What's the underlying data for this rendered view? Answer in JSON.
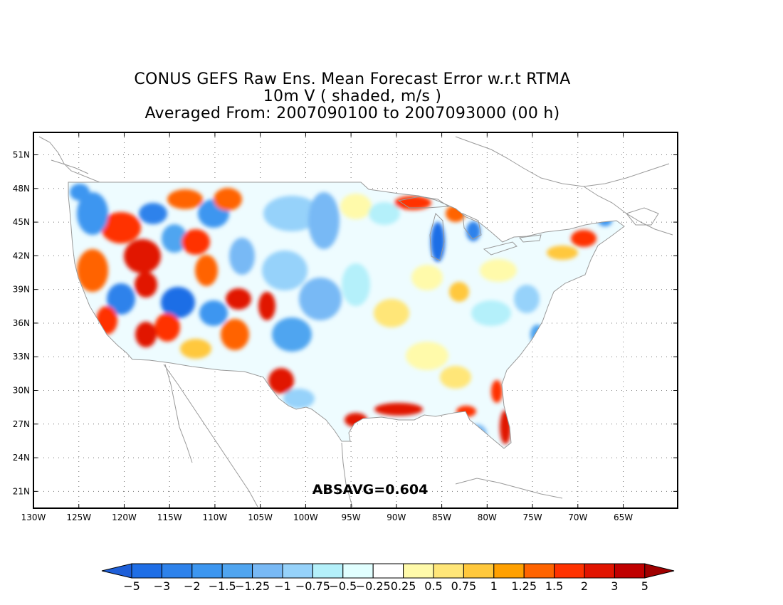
{
  "title": {
    "line1": "CONUS GEFS Raw Ens. Mean Forecast Error w.r.t RTMA",
    "line2": "10m V ( shaded, m/s )",
    "line3": "Averaged From: 2007090100 to 2007093000 (00 h)"
  },
  "stat_label": "ABSAVG=0.604",
  "axes": {
    "lon_range": [
      -130,
      -59
    ],
    "lat_range": [
      19.5,
      53
    ],
    "x_ticks": [
      {
        "value": -130,
        "label": "130W"
      },
      {
        "value": -125,
        "label": "125W"
      },
      {
        "value": -120,
        "label": "120W"
      },
      {
        "value": -115,
        "label": "115W"
      },
      {
        "value": -110,
        "label": "110W"
      },
      {
        "value": -105,
        "label": "105W"
      },
      {
        "value": -100,
        "label": "100W"
      },
      {
        "value": -95,
        "label": "95W"
      },
      {
        "value": -90,
        "label": "90W"
      },
      {
        "value": -85,
        "label": "85W"
      },
      {
        "value": -80,
        "label": "80W"
      },
      {
        "value": -75,
        "label": "75W"
      },
      {
        "value": -70,
        "label": "70W"
      },
      {
        "value": -65,
        "label": "65W"
      }
    ],
    "y_ticks": [
      {
        "value": 21,
        "label": "21N"
      },
      {
        "value": 24,
        "label": "24N"
      },
      {
        "value": 27,
        "label": "27N"
      },
      {
        "value": 30,
        "label": "30N"
      },
      {
        "value": 33,
        "label": "33N"
      },
      {
        "value": 36,
        "label": "36N"
      },
      {
        "value": 39,
        "label": "39N"
      },
      {
        "value": 42,
        "label": "42N"
      },
      {
        "value": 45,
        "label": "45N"
      },
      {
        "value": 48,
        "label": "48N"
      },
      {
        "value": 51,
        "label": "51N"
      }
    ],
    "grid": true
  },
  "colorbar": {
    "labels": [
      "−5",
      "−3",
      "−2",
      "−1.5",
      "−1.25",
      "−1",
      "−0.75",
      "−0.5",
      "−0.25",
      "0.25",
      "0.5",
      "0.75",
      "1",
      "1.25",
      "1.5",
      "2",
      "3",
      "5"
    ],
    "under_color": "#1e5fd8",
    "over_color": "#a00000",
    "colors": [
      "#1e6ee6",
      "#2d82eb",
      "#3c96f0",
      "#50a5f0",
      "#78b9f5",
      "#96d2fa",
      "#b4f0fa",
      "#e1ffff",
      "#ffffff",
      "#fffaaa",
      "#ffe678",
      "#ffc83c",
      "#ffa000",
      "#ff6400",
      "#ff3200",
      "#e11400",
      "#c00000"
    ]
  },
  "colors": {
    "land_outline": "#9a9a9a",
    "grid": "#777777"
  }
}
